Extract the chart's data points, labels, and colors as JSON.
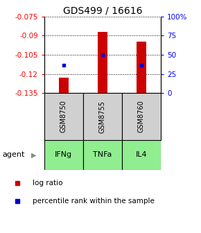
{
  "title": "GDS499 / 16616",
  "categories": [
    "IFNg",
    "TNFa",
    "IL4"
  ],
  "gsm_labels": [
    "GSM8750",
    "GSM8755",
    "GSM8760"
  ],
  "bar_bottom": -0.135,
  "bar_tops": [
    -0.123,
    -0.087,
    -0.095
  ],
  "blue_dot_values": [
    -0.113,
    -0.105,
    -0.113
  ],
  "ylim_left": [
    -0.135,
    -0.075
  ],
  "yticks_left": [
    -0.135,
    -0.12,
    -0.105,
    -0.09,
    -0.075
  ],
  "yticks_right": [
    0,
    25,
    50,
    75,
    100
  ],
  "bar_color": "#cc0000",
  "blue_color": "#0000cc",
  "gsm_bg_color": "#d0d0d0",
  "agent_bg_color": "#90ee90",
  "legend_bar_label": "log ratio",
  "legend_dot_label": "percentile rank within the sample",
  "agent_label": "agent",
  "title_fontsize": 10,
  "tick_fontsize": 7.5,
  "gsm_label_fontsize": 7,
  "agent_label_fontsize": 8,
  "bar_width": 0.25
}
